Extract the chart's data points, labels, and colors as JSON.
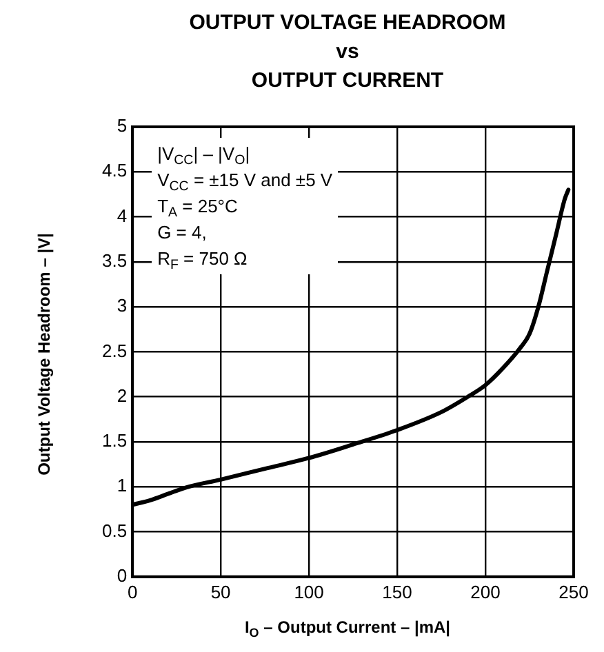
{
  "chart_data": {
    "type": "line",
    "title": "OUTPUT VOLTAGE HEADROOM\nvs\nOUTPUT CURRENT",
    "xlabel": "I$_{O}$ – Output Current – |mA|",
    "ylabel": "Output Voltage Headroom – |V|",
    "annotations": [
      "|V$_{CC}$| – |V$_{O}$|",
      "V$_{CC}$ = ±15 V and ±5 V",
      "T$_{A}$ = 25°C",
      "G = 4,",
      "R$_{F}$ = 750 Ω"
    ],
    "x": [
      0,
      10,
      20,
      30,
      50,
      75,
      100,
      125,
      150,
      175,
      190,
      200,
      210,
      220,
      225,
      230,
      235,
      240,
      245,
      247
    ],
    "series": [
      {
        "color": "#000000",
        "values": [
          0.8,
          0.85,
          0.92,
          0.99,
          1.08,
          1.2,
          1.32,
          1.47,
          1.63,
          1.83,
          2.0,
          2.13,
          2.32,
          2.55,
          2.7,
          3.0,
          3.4,
          3.8,
          4.2,
          4.3
        ]
      }
    ],
    "xlim": [
      0,
      250
    ],
    "xticks": [
      0,
      50,
      100,
      150,
      200,
      250
    ],
    "ylim": [
      0,
      5
    ],
    "yticks": [
      0,
      0.5,
      1,
      1.5,
      2,
      2.5,
      3,
      3.5,
      4,
      4.5,
      5
    ],
    "grid": true,
    "legend": false,
    "marker": "none",
    "line_style": "solid"
  }
}
